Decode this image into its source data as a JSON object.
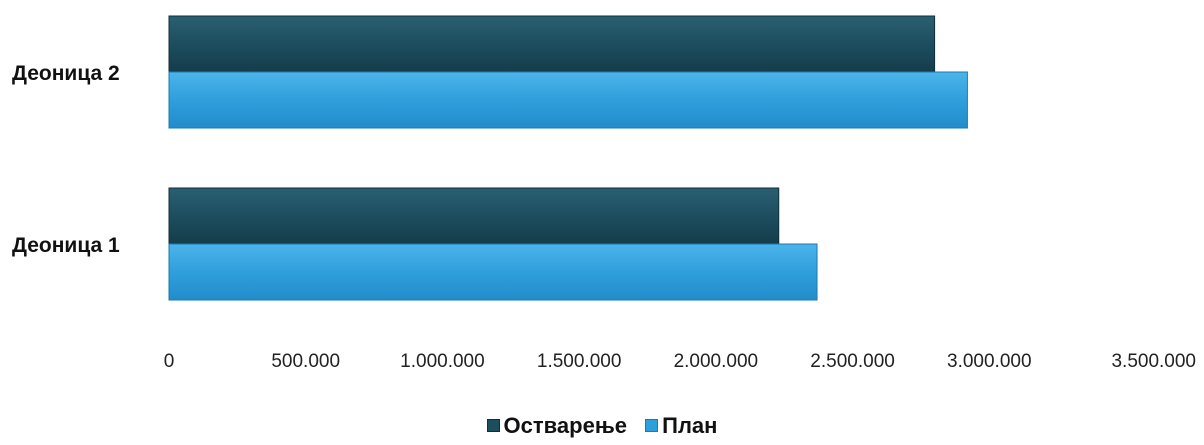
{
  "chart_data": {
    "type": "bar",
    "orientation": "horizontal",
    "categories": [
      "Деоница 1",
      "Деоница 2"
    ],
    "series": [
      {
        "name": "Остварење",
        "values": [
          2230000,
          2800000
        ],
        "color": "#1d4e5f"
      },
      {
        "name": "План",
        "values": [
          2370000,
          2920000
        ],
        "color": "#2f9fdc"
      }
    ],
    "xlim": [
      0,
      3500000
    ],
    "xticks": [
      0,
      500000,
      1000000,
      1500000,
      2000000,
      2500000,
      3000000,
      3500000
    ],
    "xtick_labels": [
      "0",
      "500.000",
      "1.000.000",
      "1.500.000",
      "2.000.000",
      "2.500.000",
      "3.000.000",
      "3.500.000"
    ],
    "legend_position": "bottom",
    "grid": false
  }
}
